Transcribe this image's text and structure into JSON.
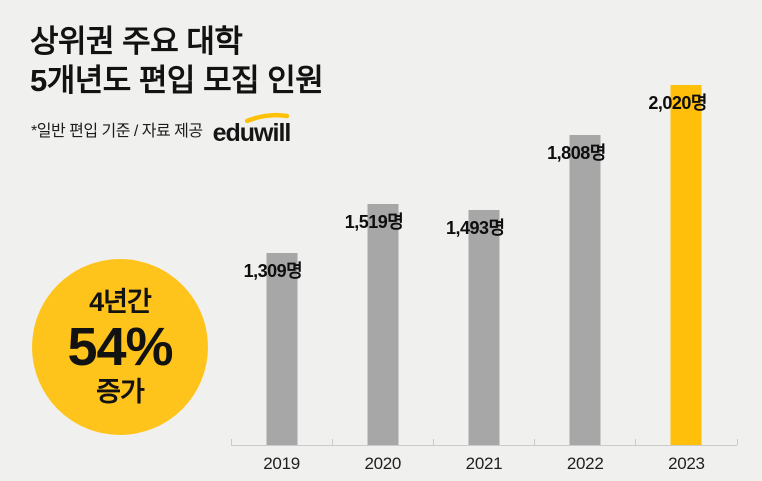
{
  "page": {
    "background_color": "#F0F0EE"
  },
  "header": {
    "title_line1": "상위권 주요 대학",
    "title_line2": "5개년도 편입 모집 인원",
    "note": "*일반 편입 기준 / 자료 제공",
    "logo_text": "eduwill",
    "logo_swoosh_color": "#FFC107"
  },
  "badge": {
    "line1": "4년간",
    "line2": "54%",
    "line3": "증가",
    "color": "#FFC41C",
    "text_color": "#121212"
  },
  "chart_data": {
    "type": "bar",
    "title": "상위권 주요 대학 5개년도 편입 모집 인원",
    "categories": [
      "2019",
      "2020",
      "2021",
      "2022",
      "2023"
    ],
    "values": [
      1309,
      1519,
      1493,
      1808,
      2020
    ],
    "value_labels": [
      "1,309명",
      "1,519명",
      "1,493명",
      "1,808명",
      "2,020명"
    ],
    "unit": "명",
    "ylim": [
      500,
      2020
    ],
    "grid": false,
    "legend": "none",
    "xlabel": "",
    "ylabel": "",
    "bar_color_default": "#A7A7A7",
    "bar_color_highlight": "#FFBF0A",
    "highlight_index": 4,
    "axis_color": "#C9CAC9"
  }
}
